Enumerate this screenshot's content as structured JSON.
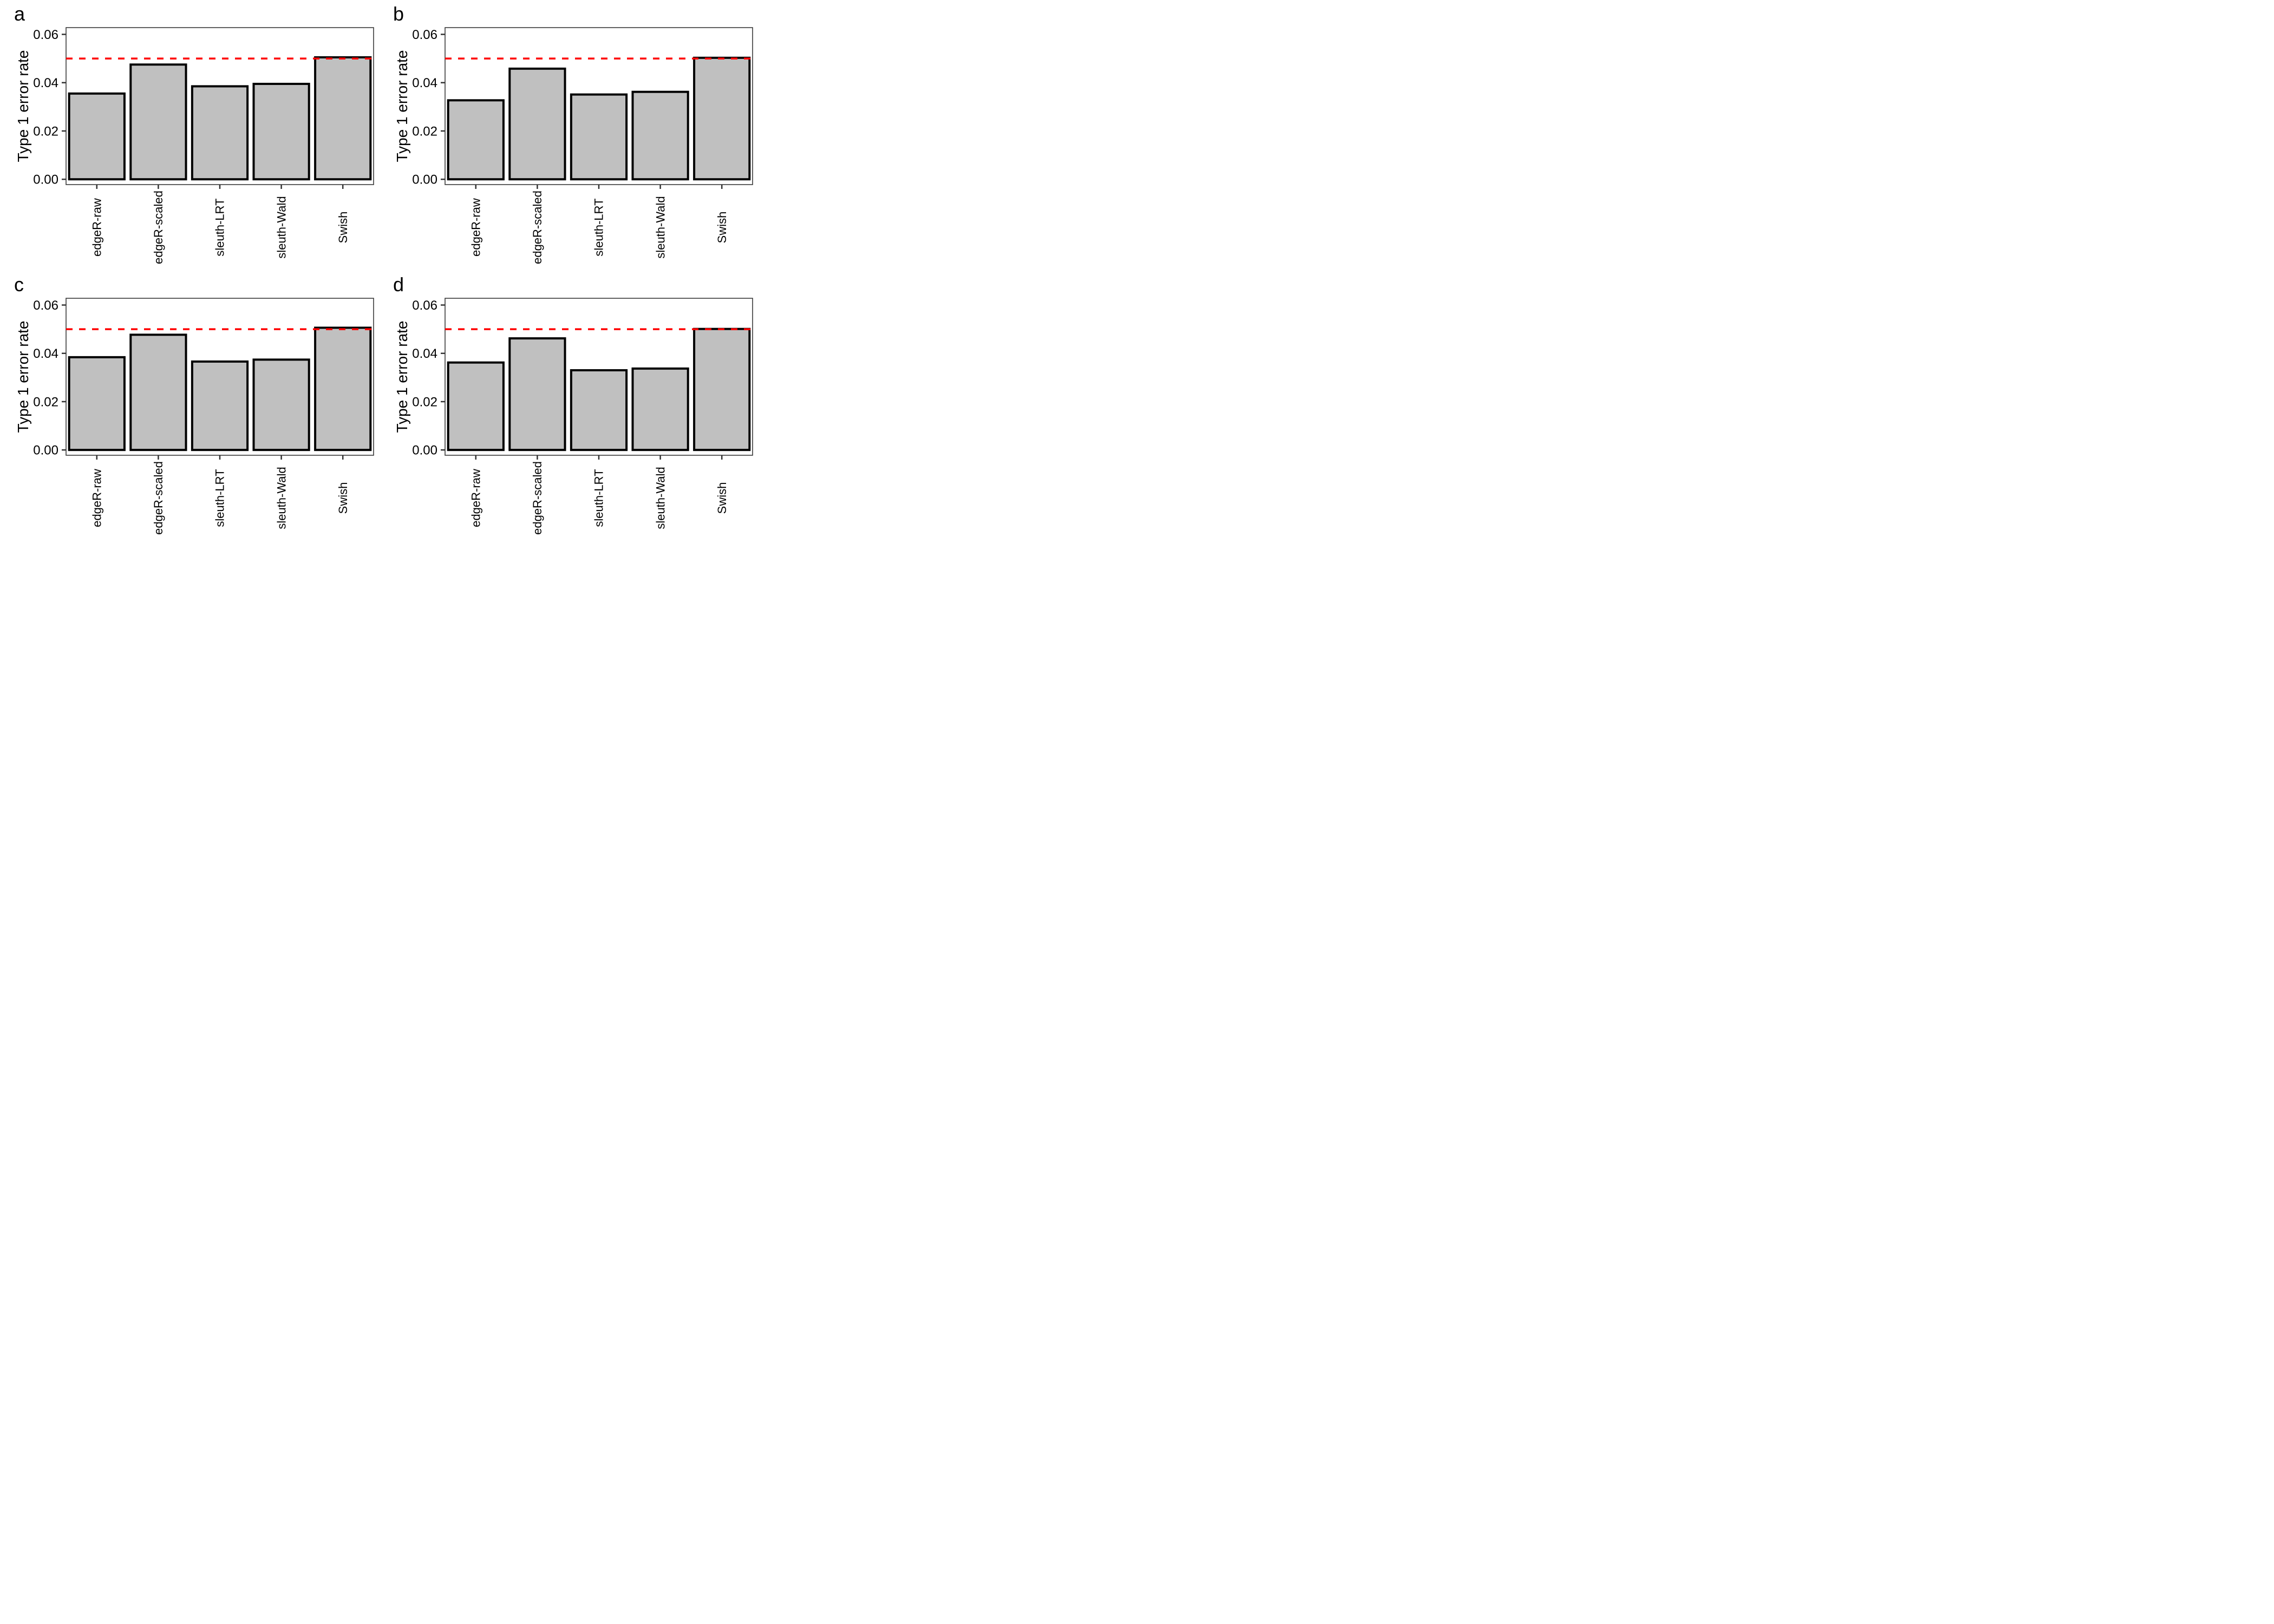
{
  "style": {
    "background": "#FFFFFF",
    "bar_fill": "#C0C0C0",
    "bar_stroke": "#000000",
    "reference_line_color": "#FF0000",
    "axis_color": "#333333",
    "panel_border_color": "#3A3A3A",
    "text_color": "#000000"
  },
  "chart_data": [
    {
      "type": "bar",
      "panel": "a",
      "ylabel": "Type 1 error rate",
      "xlabel": "",
      "categories": [
        "edgeR-raw",
        "edgeR-scaled",
        "sleuth-LRT",
        "sleuth-Wald",
        "Swish"
      ],
      "values": [
        0.0355,
        0.0475,
        0.0385,
        0.0395,
        0.0505
      ],
      "y_ticks": {
        "values": [
          0,
          0.02,
          0.04,
          0.06
        ],
        "labels": [
          "0.00",
          "0.02",
          "0.04",
          "0.06"
        ]
      },
      "ylim": [
        -0.0022,
        0.0628
      ],
      "reference_line": {
        "value": 0.05,
        "style": "dashed",
        "color": "#FF0000"
      },
      "grid": false,
      "legend": false,
      "bar_width_fraction": 0.9,
      "x_tick_label_rotation": 90
    },
    {
      "type": "bar",
      "panel": "b",
      "ylabel": "Type 1 error rate",
      "xlabel": "",
      "categories": [
        "edgeR-raw",
        "edgeR-scaled",
        "sleuth-LRT",
        "sleuth-Wald",
        "Swish"
      ],
      "values": [
        0.0327,
        0.0458,
        0.0351,
        0.0362,
        0.0503
      ],
      "y_ticks": {
        "values": [
          0,
          0.02,
          0.04,
          0.06
        ],
        "labels": [
          "0.00",
          "0.02",
          "0.04",
          "0.06"
        ]
      },
      "ylim": [
        -0.0022,
        0.0628
      ],
      "reference_line": {
        "value": 0.05,
        "style": "dashed",
        "color": "#FF0000"
      },
      "grid": false,
      "legend": false,
      "bar_width_fraction": 0.9,
      "x_tick_label_rotation": 90
    },
    {
      "type": "bar",
      "panel": "c",
      "ylabel": "Type 1 error rate",
      "xlabel": "",
      "categories": [
        "edgeR-raw",
        "edgeR-scaled",
        "sleuth-LRT",
        "sleuth-Wald",
        "Swish"
      ],
      "values": [
        0.0384,
        0.0477,
        0.0366,
        0.0374,
        0.0506
      ],
      "y_ticks": {
        "values": [
          0,
          0.02,
          0.04,
          0.06
        ],
        "labels": [
          "0.00",
          "0.02",
          "0.04",
          "0.06"
        ]
      },
      "ylim": [
        -0.0022,
        0.0628
      ],
      "reference_line": {
        "value": 0.05,
        "style": "dashed",
        "color": "#FF0000"
      },
      "grid": false,
      "legend": false,
      "bar_width_fraction": 0.9,
      "x_tick_label_rotation": 90
    },
    {
      "type": "bar",
      "panel": "d",
      "ylabel": "Type 1 error rate",
      "xlabel": "",
      "categories": [
        "edgeR-raw",
        "edgeR-scaled",
        "sleuth-LRT",
        "sleuth-Wald",
        "Swish"
      ],
      "values": [
        0.0362,
        0.0462,
        0.033,
        0.0337,
        0.0501
      ],
      "y_ticks": {
        "values": [
          0,
          0.02,
          0.04,
          0.06
        ],
        "labels": [
          "0.00",
          "0.02",
          "0.04",
          "0.06"
        ]
      },
      "ylim": [
        -0.0022,
        0.0628
      ],
      "reference_line": {
        "value": 0.05,
        "style": "dashed",
        "color": "#FF0000"
      },
      "grid": false,
      "legend": false,
      "bar_width_fraction": 0.9,
      "x_tick_label_rotation": 90
    }
  ]
}
